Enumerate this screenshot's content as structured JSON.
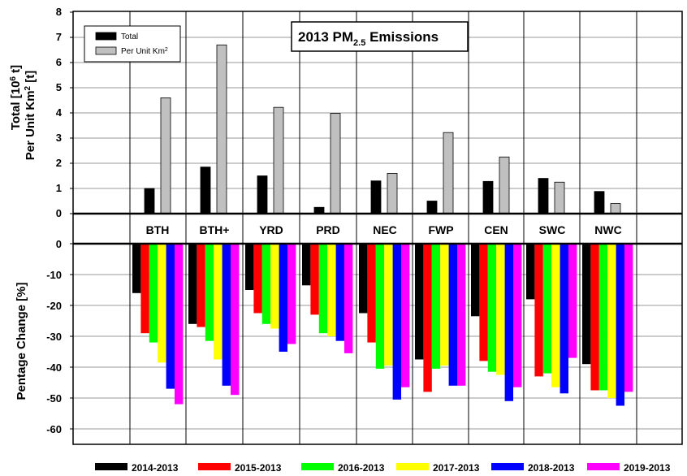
{
  "chart_data": [
    {
      "type": "bar",
      "title": "2013 PM2.5 Emissions",
      "title_parts": {
        "prefix": "2013 PM",
        "subscript": "2.5",
        "suffix": " Emissions"
      },
      "ylabel_line1": "Total [10",
      "ylabel_line1_sup": "6",
      "ylabel_line1_end": " t]",
      "ylabel_line2": "Per Unit Km",
      "ylabel_line2_sup": "2",
      "ylabel_line2_end": " [t]",
      "ylim": [
        0,
        8
      ],
      "yticks": [
        "0",
        "1",
        "2",
        "3",
        "4",
        "5",
        "6",
        "7",
        "8"
      ],
      "categories": [
        "BTH",
        "BTH+",
        "YRD",
        "PRD",
        "NEC",
        "FWP",
        "CEN",
        "SWC",
        "NWC"
      ],
      "legend_position": "top-left",
      "series": [
        {
          "name": "Total",
          "color": "#000000",
          "values": [
            1.0,
            1.85,
            1.5,
            0.25,
            1.3,
            0.5,
            1.28,
            1.4,
            0.88
          ]
        },
        {
          "name": "Per Unit Km",
          "name_sup": "2",
          "color": "#c0c0c0",
          "values": [
            4.6,
            6.7,
            4.22,
            3.98,
            1.6,
            3.22,
            2.25,
            1.25,
            0.4
          ]
        }
      ]
    },
    {
      "type": "bar",
      "ylabel": "Pentage Change [%]",
      "ylim": [
        -65,
        0
      ],
      "yticks": [
        "0",
        "-10",
        "-20",
        "-30",
        "-40",
        "-50",
        "-60"
      ],
      "categories": [
        "BTH",
        "BTH+",
        "YRD",
        "PRD",
        "NEC",
        "FWP",
        "CEN",
        "SWC",
        "NWC"
      ],
      "legend_position": "bottom",
      "series": [
        {
          "name": "2014-2013",
          "color": "#000000",
          "values": [
            -16,
            -26,
            -15,
            -13.5,
            -22.5,
            -37.5,
            -23.5,
            -18,
            -39
          ]
        },
        {
          "name": "2015-2013",
          "color": "#ff0000",
          "values": [
            -29,
            -27,
            -22.5,
            -23,
            -32,
            -48,
            -38,
            -43,
            -47.5
          ]
        },
        {
          "name": "2016-2013",
          "color": "#00ff00",
          "values": [
            -32,
            -31.5,
            -26,
            -29,
            -40.5,
            -40.5,
            -41.5,
            -42,
            -47.5
          ]
        },
        {
          "name": "2017-2013",
          "color": "#ffff00",
          "values": [
            -38.5,
            -37.5,
            -27.5,
            -30,
            -39.5,
            -39.5,
            -42.5,
            -46.5,
            -50
          ]
        },
        {
          "name": "2018-2013",
          "color": "#0000ff",
          "values": [
            -47,
            -46,
            -35,
            -31.5,
            -50.5,
            -46,
            -51,
            -48.5,
            -52.5
          ]
        },
        {
          "name": "2019-2013",
          "color": "#ff00ff",
          "values": [
            -52,
            -49,
            -32.5,
            -35.5,
            -46.5,
            -46,
            -46.5,
            -37,
            -48
          ]
        }
      ]
    }
  ]
}
